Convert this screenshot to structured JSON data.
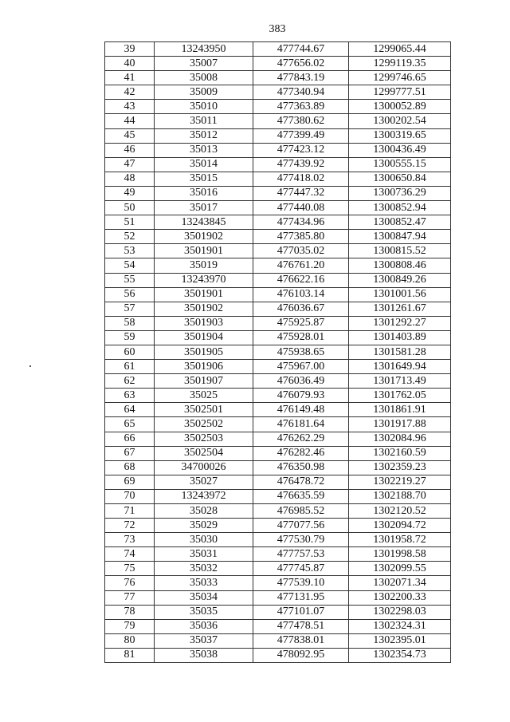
{
  "page_number": "383",
  "table": {
    "rows": [
      [
        "39",
        "13243950",
        "477744.67",
        "1299065.44"
      ],
      [
        "40",
        "35007",
        "477656.02",
        "1299119.35"
      ],
      [
        "41",
        "35008",
        "477843.19",
        "1299746.65"
      ],
      [
        "42",
        "35009",
        "477340.94",
        "1299777.51"
      ],
      [
        "43",
        "35010",
        "477363.89",
        "1300052.89"
      ],
      [
        "44",
        "35011",
        "477380.62",
        "1300202.54"
      ],
      [
        "45",
        "35012",
        "477399.49",
        "1300319.65"
      ],
      [
        "46",
        "35013",
        "477423.12",
        "1300436.49"
      ],
      [
        "47",
        "35014",
        "477439.92",
        "1300555.15"
      ],
      [
        "48",
        "35015",
        "477418.02",
        "1300650.84"
      ],
      [
        "49",
        "35016",
        "477447.32",
        "1300736.29"
      ],
      [
        "50",
        "35017",
        "477440.08",
        "1300852.94"
      ],
      [
        "51",
        "13243845",
        "477434.96",
        "1300852.47"
      ],
      [
        "52",
        "3501902",
        "477385.80",
        "1300847.94"
      ],
      [
        "53",
        "3501901",
        "477035.02",
        "1300815.52"
      ],
      [
        "54",
        "35019",
        "476761.20",
        "1300808.46"
      ],
      [
        "55",
        "13243970",
        "476622.16",
        "1300849.26"
      ],
      [
        "56",
        "3501901",
        "476103.14",
        "1301001.56"
      ],
      [
        "57",
        "3501902",
        "476036.67",
        "1301261.67"
      ],
      [
        "58",
        "3501903",
        "475925.87",
        "1301292.27"
      ],
      [
        "59",
        "3501904",
        "475928.01",
        "1301403.89"
      ],
      [
        "60",
        "3501905",
        "475938.65",
        "1301581.28"
      ],
      [
        "61",
        "3501906",
        "475967.00",
        "1301649.94"
      ],
      [
        "62",
        "3501907",
        "476036.49",
        "1301713.49"
      ],
      [
        "63",
        "35025",
        "476079.93",
        "1301762.05"
      ],
      [
        "64",
        "3502501",
        "476149.48",
        "1301861.91"
      ],
      [
        "65",
        "3502502",
        "476181.64",
        "1301917.88"
      ],
      [
        "66",
        "3502503",
        "476262.29",
        "1302084.96"
      ],
      [
        "67",
        "3502504",
        "476282.46",
        "1302160.59"
      ],
      [
        "68",
        "34700026",
        "476350.98",
        "1302359.23"
      ],
      [
        "69",
        "35027",
        "476478.72",
        "1302219.27"
      ],
      [
        "70",
        "13243972",
        "476635.59",
        "1302188.70"
      ],
      [
        "71",
        "35028",
        "476985.52",
        "1302120.52"
      ],
      [
        "72",
        "35029",
        "477077.56",
        "1302094.72"
      ],
      [
        "73",
        "35030",
        "477530.79",
        "1301958.72"
      ],
      [
        "74",
        "35031",
        "477757.53",
        "1301998.58"
      ],
      [
        "75",
        "35032",
        "477745.87",
        "1302099.55"
      ],
      [
        "76",
        "35033",
        "477539.10",
        "1302071.34"
      ],
      [
        "77",
        "35034",
        "477131.95",
        "1302200.33"
      ],
      [
        "78",
        "35035",
        "477101.07",
        "1302298.03"
      ],
      [
        "79",
        "35036",
        "477478.51",
        "1302324.31"
      ],
      [
        "80",
        "35037",
        "477838.01",
        "1302395.01"
      ],
      [
        "81",
        "35038",
        "478092.95",
        "1302354.73"
      ]
    ]
  }
}
